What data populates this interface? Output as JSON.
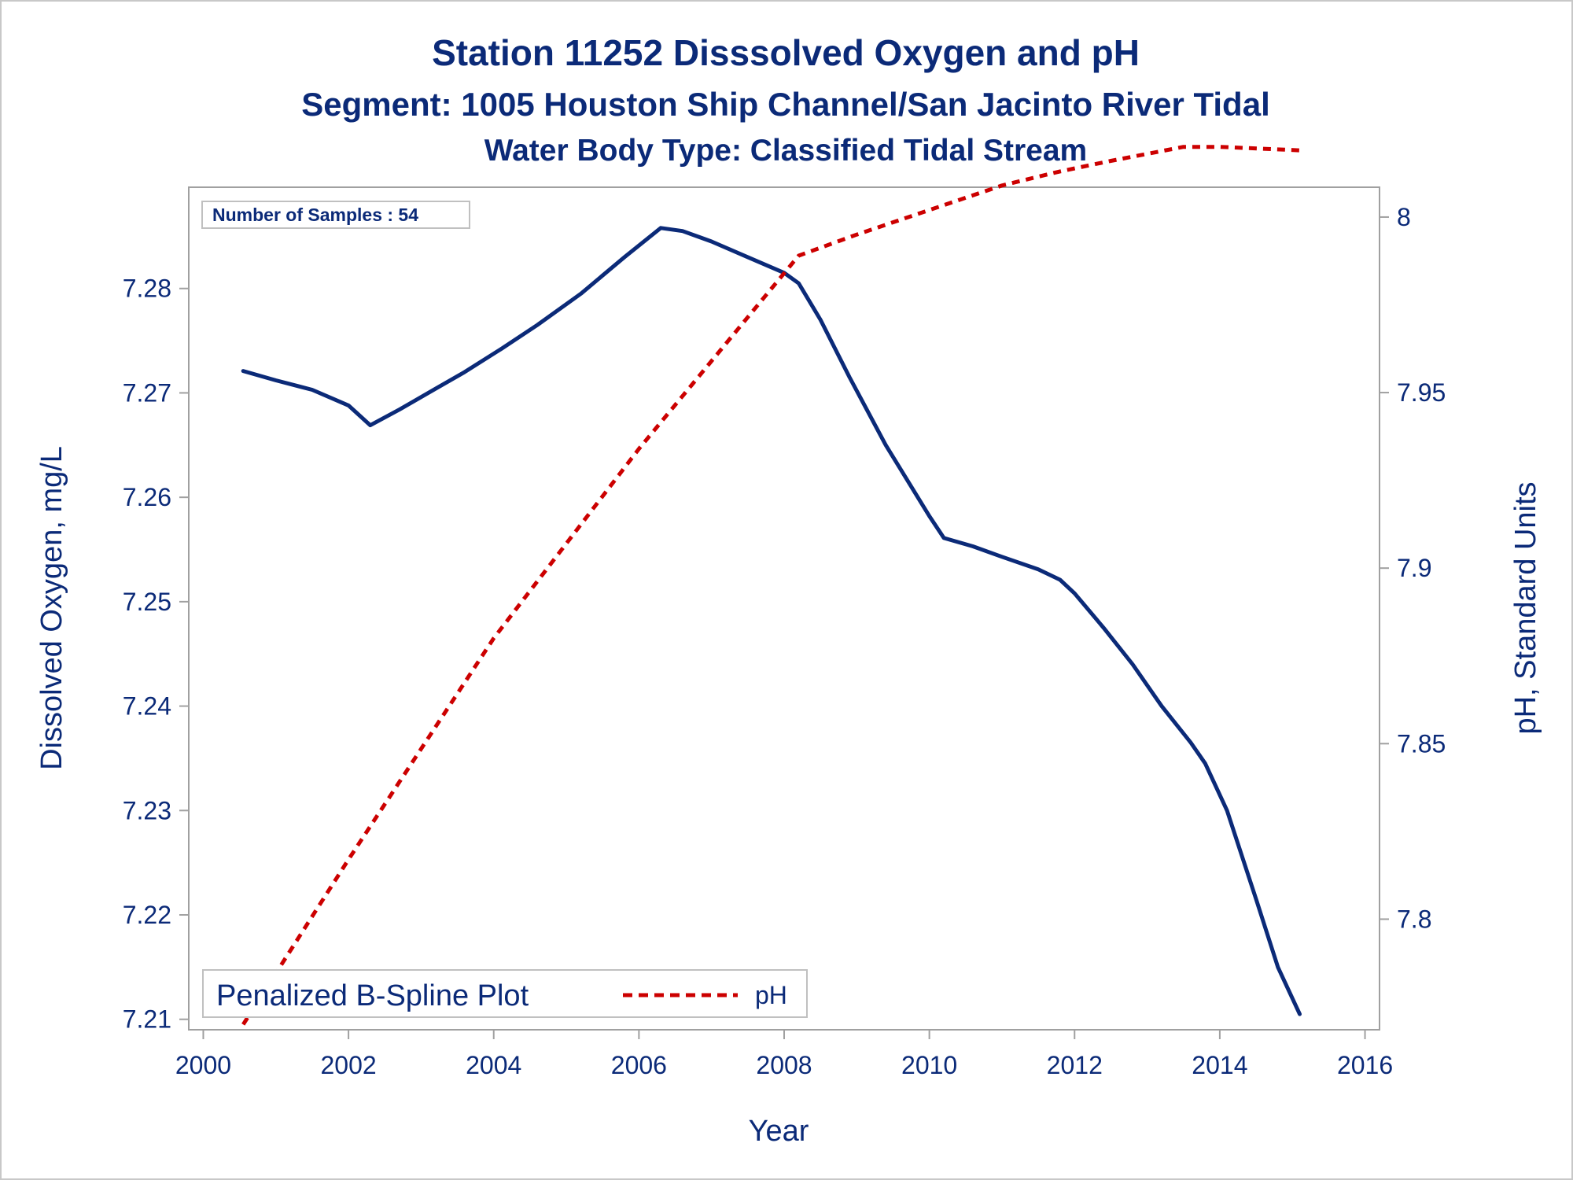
{
  "titles": {
    "line1": "Station 11252   Disssolved Oxygen and pH",
    "line2": "Segment: 1005  Houston Ship Channel/San Jacinto River Tidal",
    "line3": "Water Body Type: Classified Tidal Stream"
  },
  "inset": {
    "label": "Number of Samples : 54"
  },
  "legend": {
    "title": "Penalized B-Spline Plot",
    "items": [
      {
        "label": "pH"
      }
    ]
  },
  "colors": {
    "text": "#0b2a78",
    "do_line": "#0b2a78",
    "ph_line": "#cc0000",
    "frame": "#a0a0a0"
  },
  "chart_data": {
    "type": "line",
    "xlabel": "Year",
    "ylabel": "Dissolved Oxygen, mg/L",
    "y2label": "pH, Standard Units",
    "xlim": [
      1999.8,
      2016.2
    ],
    "ylim": [
      7.209,
      7.2897
    ],
    "y2lim": [
      7.7685,
      8.0085
    ],
    "x_ticks": [
      2000,
      2002,
      2004,
      2006,
      2008,
      2010,
      2012,
      2014,
      2016
    ],
    "y_ticks": [
      7.21,
      7.22,
      7.23,
      7.24,
      7.25,
      7.26,
      7.27,
      7.28
    ],
    "y2_ticks": [
      7.8,
      7.85,
      7.9,
      7.95,
      8
    ],
    "y_tick_labels": [
      "7.21",
      "7.22",
      "7.23",
      "7.24",
      "7.25",
      "7.26",
      "7.27",
      "7.28"
    ],
    "y2_tick_labels": [
      "7.8",
      "7.85",
      "7.9",
      "7.95",
      "8"
    ],
    "grid": false,
    "legend_position": "bottom-left",
    "series": [
      {
        "axis": "left",
        "style": "solid",
        "x": [
          2000.55,
          2001.0,
          2001.5,
          2002.0,
          2002.3,
          2002.7,
          2003.2,
          2003.6,
          2004.1,
          2004.6,
          2005.2,
          2005.8,
          2006.3,
          2006.6,
          2007.0,
          2007.5,
          2008.0,
          2008.2,
          2008.5,
          2008.9,
          2009.4,
          2010.0,
          2010.2,
          2010.6,
          2011.0,
          2011.5,
          2011.8,
          2012.0,
          2012.4,
          2012.8,
          2013.2,
          2013.6,
          2013.8,
          2014.1,
          2014.5,
          2014.8,
          2015.1
        ],
        "y": [
          7.2721,
          7.2712,
          7.2703,
          7.2688,
          7.2669,
          7.2684,
          7.2704,
          7.272,
          7.2742,
          7.2765,
          7.2795,
          7.283,
          7.2858,
          7.2855,
          7.2845,
          7.283,
          7.2815,
          7.2805,
          7.277,
          7.2715,
          7.265,
          7.2582,
          7.2561,
          7.2553,
          7.2543,
          7.2531,
          7.2521,
          7.2508,
          7.2475,
          7.244,
          7.24,
          7.2365,
          7.2345,
          7.23,
          7.2215,
          7.215,
          7.2105
        ]
      },
      {
        "axis": "right",
        "style": "dashed",
        "name": "pH",
        "x": [
          2000.55,
          2002.0,
          2004.0,
          2006.0,
          2008.0,
          2008.2,
          2009.0,
          2010.0,
          2011.0,
          2011.8,
          2012.5,
          2013.5,
          2014.0,
          2015.1
        ],
        "y": [
          7.77,
          7.817,
          7.88,
          7.934,
          7.984,
          7.989,
          7.995,
          8.002,
          8.009,
          8.013,
          8.016,
          8.02,
          8.02,
          8.019
        ]
      }
    ]
  }
}
